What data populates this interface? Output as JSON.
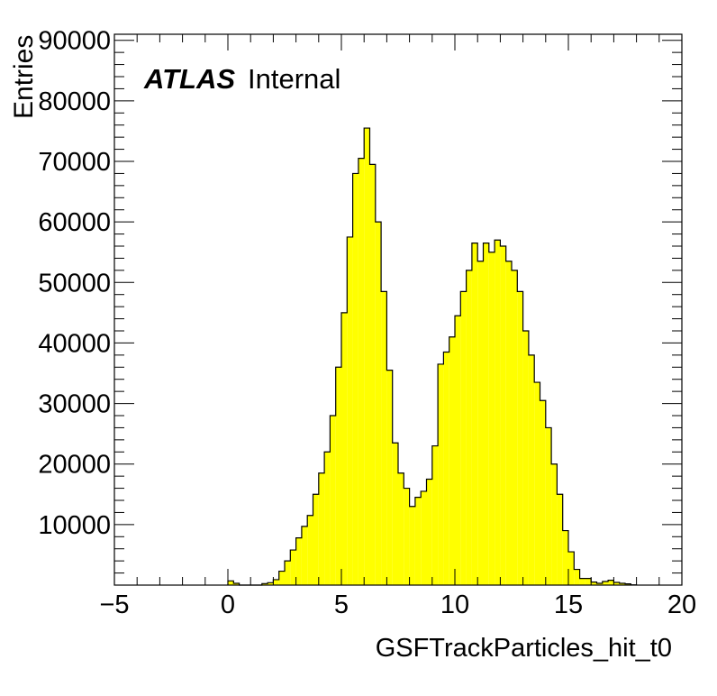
{
  "chart_data": {
    "type": "histogram",
    "xlabel": "GSFTrackParticles_hit_t0",
    "ylabel": "Entries",
    "xlim": [
      -5,
      20
    ],
    "ylim": [
      0,
      91000
    ],
    "x_ticks": [
      -5,
      0,
      5,
      10,
      15,
      20
    ],
    "x_tick_labels": [
      "−5",
      "0",
      "5",
      "10",
      "15",
      "20"
    ],
    "y_ticks": [
      10000,
      20000,
      30000,
      40000,
      50000,
      60000,
      70000,
      80000,
      90000
    ],
    "y_tick_labels": [
      "10000",
      "20000",
      "30000",
      "40000",
      "50000",
      "60000",
      "70000",
      "80000",
      "90000"
    ],
    "fill_color": "#ffff00",
    "line_color": "#000000",
    "bin_width": 0.25,
    "bins": [
      [
        0.0,
        700
      ],
      [
        0.25,
        300
      ],
      [
        0.5,
        0
      ],
      [
        0.75,
        0
      ],
      [
        1.0,
        0
      ],
      [
        1.25,
        0
      ],
      [
        1.5,
        250
      ],
      [
        1.75,
        400
      ],
      [
        2.0,
        900
      ],
      [
        2.25,
        2300
      ],
      [
        2.5,
        4000
      ],
      [
        2.75,
        5800
      ],
      [
        3.0,
        7800
      ],
      [
        3.25,
        9700
      ],
      [
        3.5,
        11500
      ],
      [
        3.75,
        15000
      ],
      [
        4.0,
        18500
      ],
      [
        4.25,
        22000
      ],
      [
        4.5,
        28000
      ],
      [
        4.75,
        36000
      ],
      [
        5.0,
        45000
      ],
      [
        5.25,
        57500
      ],
      [
        5.5,
        68000
      ],
      [
        5.75,
        70500
      ],
      [
        6.0,
        75500
      ],
      [
        6.25,
        69500
      ],
      [
        6.5,
        60000
      ],
      [
        6.75,
        48500
      ],
      [
        7.0,
        35500
      ],
      [
        7.25,
        23500
      ],
      [
        7.5,
        18500
      ],
      [
        7.75,
        16000
      ],
      [
        8.0,
        13000
      ],
      [
        8.25,
        14500
      ],
      [
        8.5,
        15500
      ],
      [
        8.75,
        17500
      ],
      [
        9.0,
        23000
      ],
      [
        9.25,
        36500
      ],
      [
        9.5,
        38500
      ],
      [
        9.75,
        41000
      ],
      [
        10.0,
        44500
      ],
      [
        10.25,
        48500
      ],
      [
        10.5,
        52000
      ],
      [
        10.75,
        56500
      ],
      [
        11.0,
        53500
      ],
      [
        11.25,
        56500
      ],
      [
        11.5,
        55000
      ],
      [
        11.75,
        57000
      ],
      [
        12.0,
        56000
      ],
      [
        12.25,
        53500
      ],
      [
        12.5,
        52000
      ],
      [
        12.75,
        48500
      ],
      [
        13.0,
        42000
      ],
      [
        13.25,
        38000
      ],
      [
        13.5,
        33500
      ],
      [
        13.75,
        30500
      ],
      [
        14.0,
        26000
      ],
      [
        14.25,
        20000
      ],
      [
        14.5,
        15000
      ],
      [
        14.75,
        9000
      ],
      [
        15.0,
        5500
      ],
      [
        15.25,
        2600
      ],
      [
        15.5,
        1100
      ],
      [
        15.75,
        1100
      ],
      [
        16.0,
        500
      ],
      [
        16.25,
        300
      ],
      [
        16.5,
        600
      ],
      [
        16.75,
        800
      ],
      [
        17.0,
        450
      ],
      [
        17.25,
        300
      ],
      [
        17.5,
        200
      ],
      [
        17.75,
        50
      ]
    ]
  },
  "labels": {
    "atlas": "ATLAS",
    "internal": "Internal"
  }
}
